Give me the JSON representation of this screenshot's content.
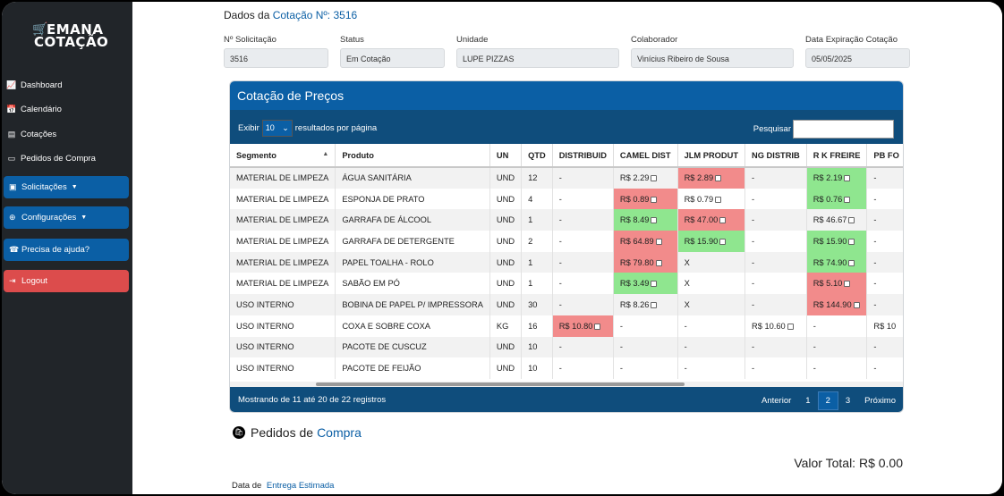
{
  "sidebar": {
    "logo_line1": "EMANA",
    "logo_line2": "COTAÇÃO",
    "links": [
      "Dashboard",
      "Calendário",
      "Cotações",
      "Pedidos de Compra"
    ],
    "buttons": {
      "solicitacoes": "Solicitações",
      "configuracoes": "Configurações",
      "ajuda": "Precisa de ajuda?",
      "logout": "Logout"
    }
  },
  "header": {
    "title_prefix": "Dados da",
    "title_accent": "Cotação Nº: 3516"
  },
  "fields": {
    "solicitacao_label": "Nº Solicitação",
    "solicitacao_value": "3516",
    "status_label": "Status",
    "status_value": "Em Cotação",
    "unidade_label": "Unidade",
    "unidade_value": "LUPE PIZZAS",
    "colaborador_label": "Colaborador",
    "colaborador_value": "Vinícius Ribeiro de Sousa",
    "expiracao_label": "Data Expiração Cotação",
    "expiracao_value": "05/05/2025"
  },
  "card": {
    "title": "Cotação de Preços",
    "exibir": "Exibir",
    "page_size": "10",
    "per_page": "resultados por página",
    "search_label": "Pesquisar"
  },
  "table": {
    "columns": [
      "Segmento",
      "Produto",
      "UN",
      "QTD",
      "DISTRIBUID",
      "CAMEL DIST",
      "JLM PRODUT",
      "NG DISTRIB",
      "R K FREIRE",
      "PB FO"
    ],
    "rows": [
      {
        "seg": "MATERIAL DE LIMPEZA",
        "prod": "ÁGUA SANITÁRIA",
        "un": "UND",
        "qtd": "12",
        "distribuid": "-",
        "camel": "R$ 2.29",
        "jlm": "R$ 2.89",
        "ng": "-",
        "rk": "R$ 2.19",
        "pb": "-"
      },
      {
        "seg": "MATERIAL DE LIMPEZA",
        "prod": "ESPONJA DE PRATO",
        "un": "UND",
        "qtd": "4",
        "distribuid": "-",
        "camel": "R$ 0.89",
        "jlm": "R$ 0.79",
        "ng": "-",
        "rk": "R$ 0.76",
        "pb": "-"
      },
      {
        "seg": "MATERIAL DE LIMPEZA",
        "prod": "GARRAFA DE ÁLCOOL",
        "un": "UND",
        "qtd": "1",
        "distribuid": "-",
        "camel": "R$ 8.49",
        "jlm": "R$ 47.00",
        "ng": "-",
        "rk": "R$ 46.67",
        "pb": "-"
      },
      {
        "seg": "MATERIAL DE LIMPEZA",
        "prod": "GARRAFA DE DETERGENTE",
        "un": "UND",
        "qtd": "2",
        "distribuid": "-",
        "camel": "R$ 64.89",
        "jlm": "R$ 15.90",
        "ng": "-",
        "rk": "R$ 15.90",
        "pb": "-"
      },
      {
        "seg": "MATERIAL DE LIMPEZA",
        "prod": "PAPEL TOALHA - ROLO",
        "un": "UND",
        "qtd": "1",
        "distribuid": "-",
        "camel": "R$ 79.80",
        "jlm": "X",
        "ng": "-",
        "rk": "R$ 74.90",
        "pb": "-"
      },
      {
        "seg": "MATERIAL DE LIMPEZA",
        "prod": "SABÃO EM PÓ",
        "un": "UND",
        "qtd": "1",
        "distribuid": "-",
        "camel": "R$ 3.49",
        "jlm": "X",
        "ng": "-",
        "rk": "R$ 5.10",
        "pb": "-"
      },
      {
        "seg": "USO INTERNO",
        "prod": "BOBINA DE PAPEL P/ IMPRESSORA",
        "un": "UND",
        "qtd": "30",
        "distribuid": "-",
        "camel": "R$ 8.26",
        "jlm": "X",
        "ng": "-",
        "rk": "R$ 144.90",
        "pb": "-"
      },
      {
        "seg": "USO INTERNO",
        "prod": "COXA E SOBRE COXA",
        "un": "KG",
        "qtd": "16",
        "distribuid": "R$ 10.80",
        "camel": "-",
        "jlm": "-",
        "ng": "R$ 10.60",
        "rk": "-",
        "pb": "R$ 10"
      },
      {
        "seg": "USO INTERNO",
        "prod": "PACOTE DE CUSCUZ",
        "un": "UND",
        "qtd": "10",
        "distribuid": "-",
        "camel": "-",
        "jlm": "-",
        "ng": "-",
        "rk": "-",
        "pb": "-"
      },
      {
        "seg": "USO INTERNO",
        "prod": "PACOTE DE FEIJÃO",
        "un": "UND",
        "qtd": "10",
        "distribuid": "-",
        "camel": "-",
        "jlm": "-",
        "ng": "-",
        "rk": "-",
        "pb": "-"
      }
    ]
  },
  "footer": {
    "info": "Mostrando de 11 até 20 de 22 registros",
    "anterior": "Anterior",
    "pages": [
      "1",
      "2",
      "3"
    ],
    "proximo": "Próximo"
  },
  "pedidos": {
    "prefix": "Pedidos de",
    "accent": "Compra",
    "valor_total": "Valor Total: R$ 0.00",
    "entrega_prefix": "Data de",
    "entrega_accent": "Entrega Estimada"
  },
  "colors": {
    "primary": "#0b5fa5",
    "dark_header": "#0f4d7c",
    "sidebar_bg": "#212529",
    "highlight_low": "#8fe68f",
    "highlight_high": "#f28b8b",
    "logout": "#dc4c4c"
  }
}
